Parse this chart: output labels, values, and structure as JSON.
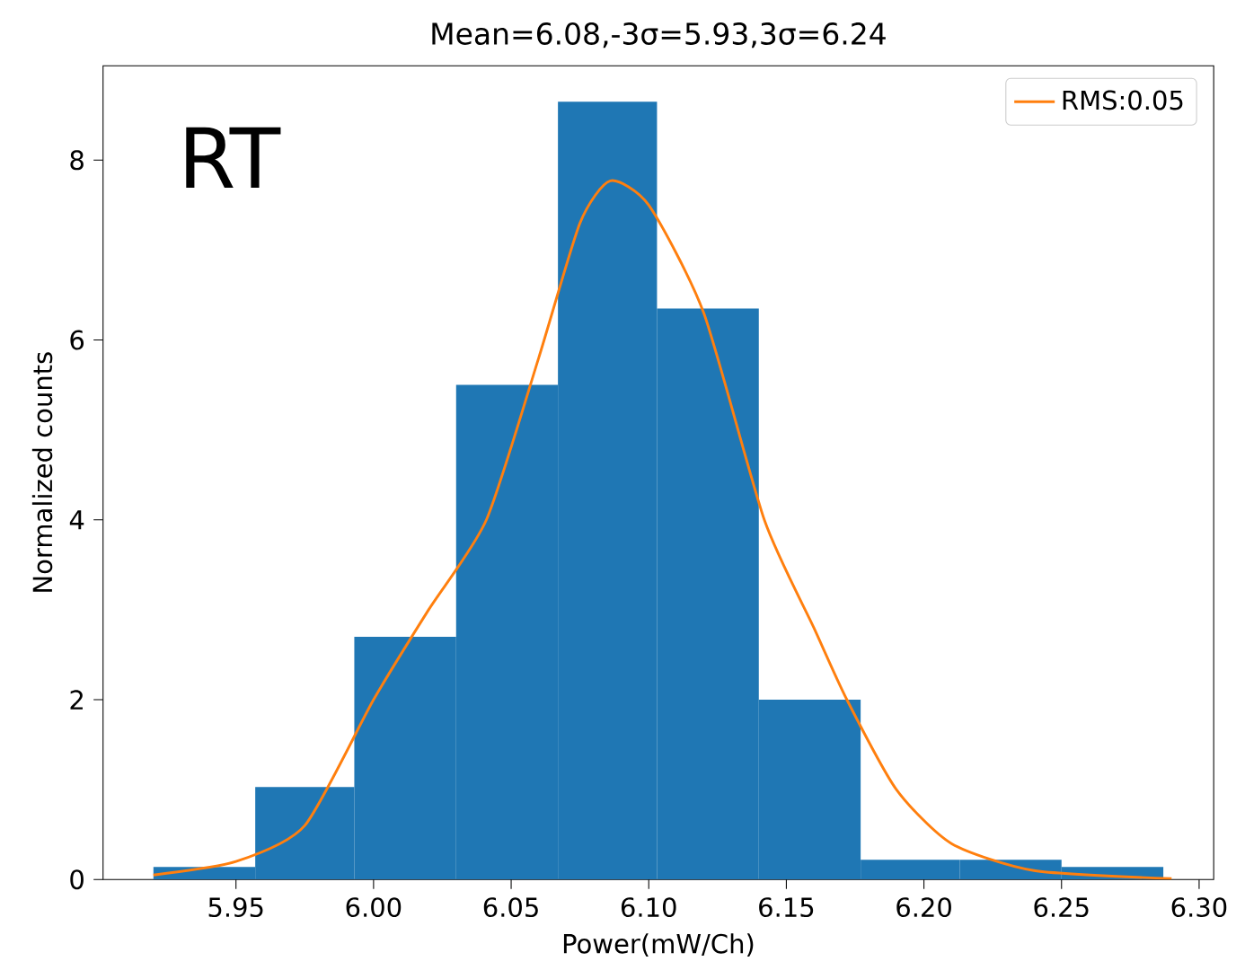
{
  "chart_data": {
    "type": "histogram",
    "title": "Mean=6.08,-3σ=5.93,3σ=6.24",
    "xlabel": "Power(mW/Ch)",
    "ylabel": "Normalized counts",
    "annotations": [
      "RT"
    ],
    "bins": [
      5.92,
      5.957,
      5.993,
      6.03,
      6.067,
      6.103,
      6.14,
      6.177,
      6.213,
      6.25,
      6.287
    ],
    "values": [
      0.14,
      1.03,
      2.7,
      5.5,
      8.65,
      6.35,
      2.0,
      0.22,
      0.22,
      0.14
    ],
    "color": "#1f77b4",
    "series": [
      {
        "type": "line",
        "name": "RMS:0.05",
        "color": "#ff7f0e",
        "x": [
          5.92,
          5.95,
          5.975,
          6.0,
          6.02,
          6.041,
          6.06,
          6.075,
          6.086,
          6.1,
          6.12,
          6.142,
          6.16,
          6.172,
          6.19,
          6.21,
          6.24,
          6.29
        ],
        "values": [
          0.05,
          0.2,
          0.6,
          2.0,
          3.0,
          4.0,
          5.8,
          7.3,
          7.77,
          7.5,
          6.3,
          4.0,
          2.8,
          2.0,
          1.0,
          0.4,
          0.1,
          0.01
        ]
      }
    ],
    "xlim": [
      5.9017,
      6.3053
    ],
    "ylim": [
      0,
      9.05
    ],
    "xticks": [
      {
        "value": 5.95,
        "label": "5.95"
      },
      {
        "value": 6.0,
        "label": "6.00"
      },
      {
        "value": 6.05,
        "label": "6.05"
      },
      {
        "value": 6.1,
        "label": "6.10"
      },
      {
        "value": 6.15,
        "label": "6.15"
      },
      {
        "value": 6.2,
        "label": "6.20"
      },
      {
        "value": 6.25,
        "label": "6.25"
      },
      {
        "value": 6.3,
        "label": "6.30"
      }
    ],
    "yticks": [
      0,
      2,
      4,
      6,
      8
    ],
    "legend": "top right"
  }
}
